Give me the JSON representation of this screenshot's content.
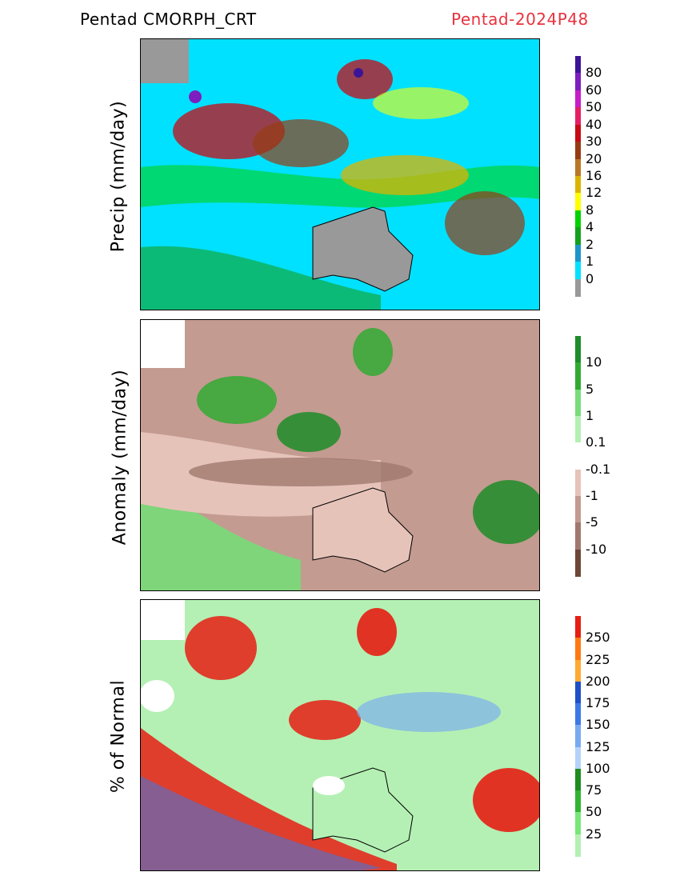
{
  "header": {
    "left_title": "Pentad CMORPH_CRT",
    "right_title": "Pentad-2024P48"
  },
  "panels": [
    {
      "id": "precip",
      "ylabel": "Precip (mm/day)",
      "colorbar": {
        "labels": [
          "80",
          "60",
          "50",
          "40",
          "30",
          "20",
          "16",
          "12",
          "8",
          "4",
          "2",
          "1",
          "0"
        ],
        "colors": [
          "#3c1496",
          "#7d1ebe",
          "#c81ec8",
          "#e61e64",
          "#c80a14",
          "#963c14",
          "#b97828",
          "#dcb400",
          "#ffff00",
          "#00d200",
          "#14a01e",
          "#1e96c8",
          "#00e1ff",
          "#999999"
        ]
      }
    },
    {
      "id": "anomaly",
      "ylabel": "Anomaly (mm/day)",
      "colorbar": {
        "labels": [
          "10",
          "5",
          "1",
          "0.1",
          "-0.1",
          "-1",
          "-5",
          "-10"
        ],
        "colors": [
          "#1e8c28",
          "#32aa32",
          "#78dc78",
          "#b4f0b4",
          "#ffffff",
          "#e6c3b9",
          "#c39b91",
          "#a0786e",
          "#6e4637"
        ]
      }
    },
    {
      "id": "percent",
      "ylabel": "% of Normal",
      "colorbar": {
        "labels": [
          "250",
          "225",
          "200",
          "175",
          "150",
          "125",
          "100",
          "75",
          "50",
          "25"
        ],
        "colors": [
          "#e61e14",
          "#ff7814",
          "#ffaa32",
          "#1e50c8",
          "#3c78e6",
          "#78aaf0",
          "#b4d2fa",
          "#1e8c1e",
          "#32b432",
          "#78e678",
          "#b4f0b4"
        ]
      }
    }
  ]
}
